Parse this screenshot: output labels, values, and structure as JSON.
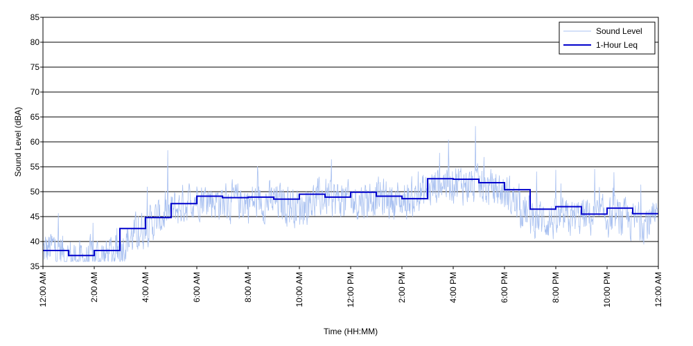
{
  "chart_data": {
    "type": "line",
    "title": "",
    "xlabel": "Time (HH:MM)",
    "ylabel": "Sound Level (dBA)",
    "ylim": [
      35,
      85
    ],
    "xlim_hours": [
      0,
      24
    ],
    "yticks": [
      35,
      40,
      45,
      50,
      55,
      60,
      65,
      70,
      75,
      80,
      85
    ],
    "xtick_hours": [
      0,
      2,
      4,
      6,
      8,
      10,
      12,
      14,
      16,
      18,
      20,
      22,
      24
    ],
    "xtick_labels": [
      "12:00 AM",
      "2:00 AM",
      "4:00 AM",
      "6:00 AM",
      "8:00 AM",
      "10:00 AM",
      "12:00 PM",
      "2:00 PM",
      "4:00 PM",
      "6:00 PM",
      "8:00 PM",
      "10:00 PM",
      "12:00 AM"
    ],
    "grid": "horizontal",
    "legend_position": "top-right",
    "series": [
      {
        "name": "Sound Level",
        "color": "#a8c0f0",
        "style": "noisy-line",
        "profile_hours": [
          0,
          0.5,
          1,
          1.5,
          2,
          2.5,
          3,
          3.5,
          4,
          5,
          6,
          7,
          8,
          9,
          10,
          11,
          12,
          13,
          14,
          15,
          15.5,
          16,
          17,
          18,
          19,
          20,
          21,
          22,
          23,
          24
        ],
        "profile_values": [
          38,
          39,
          37,
          36,
          37,
          37,
          39,
          41,
          43,
          46,
          49,
          48,
          48,
          48,
          47,
          49,
          48,
          49,
          48,
          50,
          52,
          52,
          51,
          50,
          45,
          44,
          45,
          45,
          44,
          44
        ],
        "min_value": 36,
        "max_value": 63.5
      },
      {
        "name": "1-Hour Leq",
        "color": "#0000cc",
        "style": "step",
        "hours": [
          0,
          1,
          2,
          3,
          4,
          5,
          6,
          7,
          8,
          9,
          10,
          11,
          12,
          13,
          14,
          15,
          16,
          17,
          18,
          19,
          20,
          21,
          22,
          23
        ],
        "values": [
          38.2,
          37.2,
          38.2,
          42.6,
          44.8,
          47.6,
          49.1,
          48.8,
          48.9,
          48.5,
          49.5,
          48.9,
          49.9,
          49.1,
          48.6,
          52.6,
          52.5,
          51.8,
          50.4,
          46.5,
          47.0,
          45.5,
          46.7,
          45.6
        ]
      }
    ]
  }
}
